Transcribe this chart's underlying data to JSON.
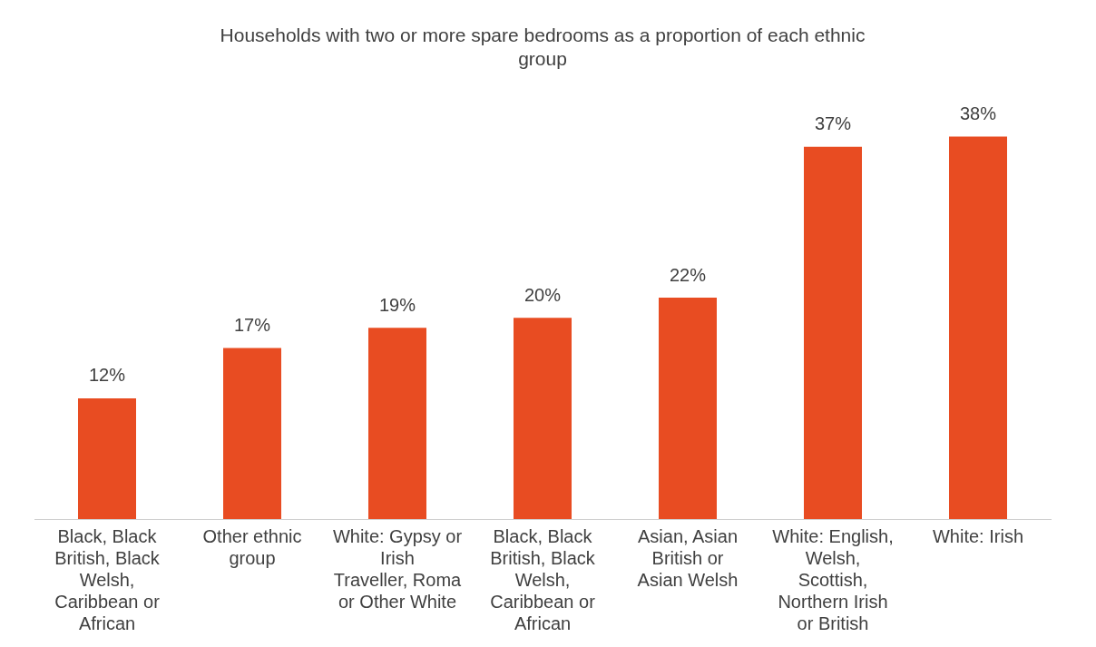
{
  "chart_data": {
    "type": "bar",
    "title": "Households with two or more spare bedrooms as a proportion of each ethnic group",
    "categories": [
      "Black, Black British, Black Welsh, Caribbean or African",
      "Other ethnic group",
      "White: Gypsy or Irish Traveller, Roma or Other White",
      "Black, Black British, Black Welsh, Caribbean or African",
      "Asian, Asian British or Asian Welsh",
      "White: English, Welsh, Scottish, Northern Irish or British",
      "White: Irish"
    ],
    "values": [
      12,
      17,
      19,
      20,
      22,
      37,
      38
    ],
    "value_labels": [
      "12%",
      "17%",
      "19%",
      "20%",
      "22%",
      "37%",
      "38%"
    ],
    "color": "#e84c22",
    "grid": false,
    "legend": false
  }
}
